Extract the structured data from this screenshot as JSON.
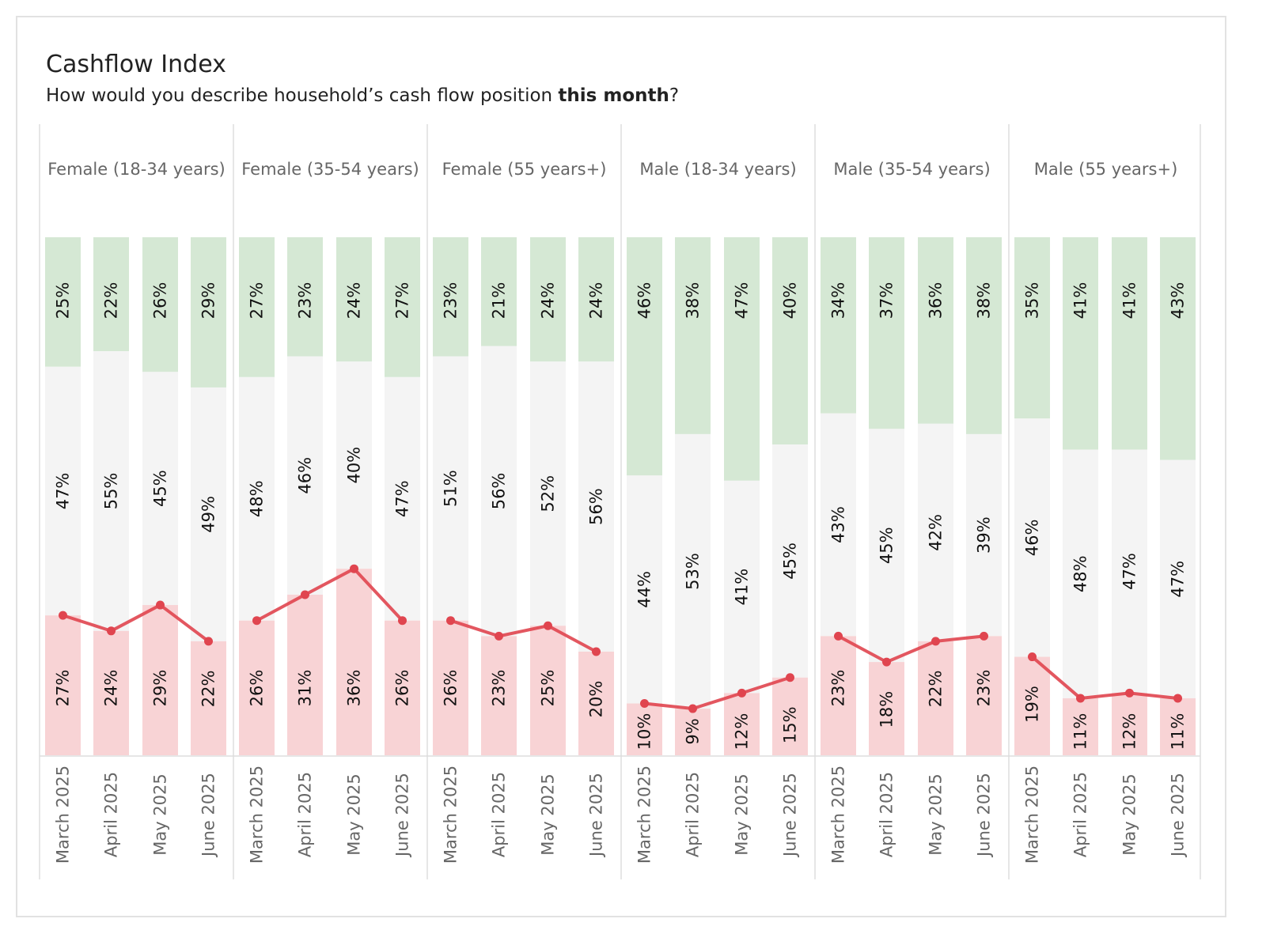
{
  "title": "Cashflow Index",
  "subtitle": {
    "prefix": "How would you describe household’s cash flow position ",
    "emphasis": "this month",
    "suffix": "?"
  },
  "colors": {
    "positive": "#d5e8d4",
    "neutral": "#f4f4f4",
    "negative": "#f8d3d5",
    "line": "#e0454f",
    "divider": "#dddddd",
    "text": "#111111",
    "label": "#666666"
  },
  "chart_data": {
    "type": "bar",
    "stacked": true,
    "ylim": [
      0,
      100
    ],
    "categories": [
      "March 2025",
      "April 2025",
      "May 2025",
      "June 2025"
    ],
    "segments": [
      "negative",
      "neutral",
      "positive"
    ],
    "panels": [
      {
        "name": "Female (18-34 years)",
        "positive": [
          25,
          22,
          26,
          29
        ],
        "neutral": [
          47,
          55,
          45,
          49
        ],
        "negative": [
          27,
          24,
          29,
          22
        ]
      },
      {
        "name": "Female (35-54 years)",
        "positive": [
          27,
          23,
          24,
          27
        ],
        "neutral": [
          48,
          46,
          40,
          47
        ],
        "negative": [
          26,
          31,
          36,
          26
        ]
      },
      {
        "name": "Female (55 years+)",
        "positive": [
          23,
          21,
          24,
          24
        ],
        "neutral": [
          51,
          56,
          52,
          56
        ],
        "negative": [
          26,
          23,
          25,
          20
        ]
      },
      {
        "name": "Male (18-34 years)",
        "positive": [
          46,
          38,
          47,
          40
        ],
        "neutral": [
          44,
          53,
          41,
          45
        ],
        "negative": [
          10,
          9,
          12,
          15
        ]
      },
      {
        "name": "Male (35-54 years)",
        "positive": [
          34,
          37,
          36,
          38
        ],
        "neutral": [
          43,
          45,
          42,
          39
        ],
        "negative": [
          23,
          18,
          22,
          23
        ]
      },
      {
        "name": "Male (55 years+)",
        "positive": [
          35,
          41,
          41,
          43
        ],
        "neutral": [
          46,
          48,
          47,
          47
        ],
        "negative": [
          19,
          11,
          12,
          11
        ]
      }
    ]
  }
}
